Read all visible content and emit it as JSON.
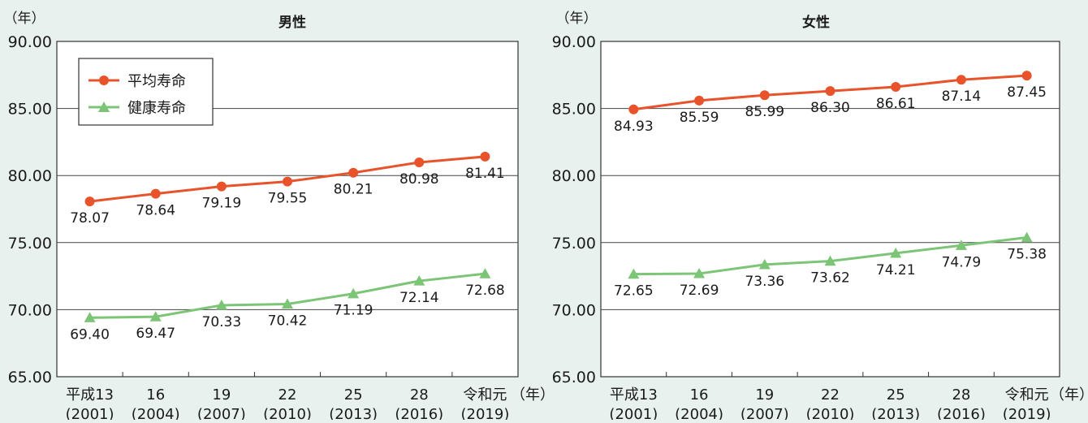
{
  "chart_data": [
    {
      "type": "line",
      "title": "男性",
      "yunit": "（年）",
      "xunit": "（年）",
      "ylim": [
        65,
        90
      ],
      "yticks": [
        "90.00",
        "85.00",
        "80.00",
        "75.00",
        "70.00",
        "65.00"
      ],
      "ytick_values": [
        90,
        85,
        80,
        75,
        70,
        65
      ],
      "grid": true,
      "legend_position": "top-left",
      "categories": [
        {
          "top": "平成13",
          "bottom": "(2001)"
        },
        {
          "top": "16",
          "bottom": "(2004)"
        },
        {
          "top": "19",
          "bottom": "(2007)"
        },
        {
          "top": "22",
          "bottom": "(2010)"
        },
        {
          "top": "25",
          "bottom": "(2013)"
        },
        {
          "top": "28",
          "bottom": "(2016)"
        },
        {
          "top": "令和元",
          "bottom": "(2019)"
        }
      ],
      "series": [
        {
          "name": "平均寿命",
          "marker": "circle",
          "color": "#e8532b",
          "values": [
            78.07,
            78.64,
            79.19,
            79.55,
            80.21,
            80.98,
            81.41
          ],
          "labels": [
            "78.07",
            "78.64",
            "79.19",
            "79.55",
            "80.21",
            "80.98",
            "81.41"
          ]
        },
        {
          "name": "健康寿命",
          "marker": "triangle",
          "color": "#7cc576",
          "values": [
            69.4,
            69.47,
            70.33,
            70.42,
            71.19,
            72.14,
            72.68
          ],
          "labels": [
            "69.40",
            "69.47",
            "70.33",
            "70.42",
            "71.19",
            "72.14",
            "72.68"
          ]
        }
      ]
    },
    {
      "type": "line",
      "title": "女性",
      "yunit": "（年）",
      "xunit": "（年）",
      "ylim": [
        65,
        90
      ],
      "yticks": [
        "90.00",
        "85.00",
        "80.00",
        "75.00",
        "70.00",
        "65.00"
      ],
      "ytick_values": [
        90,
        85,
        80,
        75,
        70,
        65
      ],
      "grid": true,
      "legend_position": "none",
      "categories": [
        {
          "top": "平成13",
          "bottom": "(2001)"
        },
        {
          "top": "16",
          "bottom": "(2004)"
        },
        {
          "top": "19",
          "bottom": "(2007)"
        },
        {
          "top": "22",
          "bottom": "(2010)"
        },
        {
          "top": "25",
          "bottom": "(2013)"
        },
        {
          "top": "28",
          "bottom": "(2016)"
        },
        {
          "top": "令和元",
          "bottom": "(2019)"
        }
      ],
      "series": [
        {
          "name": "平均寿命",
          "marker": "circle",
          "color": "#e8532b",
          "values": [
            84.93,
            85.59,
            85.99,
            86.3,
            86.61,
            87.14,
            87.45
          ],
          "labels": [
            "84.93",
            "85.59",
            "85.99",
            "86.30",
            "86.61",
            "87.14",
            "87.45"
          ]
        },
        {
          "name": "健康寿命",
          "marker": "triangle",
          "color": "#7cc576",
          "values": [
            72.65,
            72.69,
            73.36,
            73.62,
            74.21,
            74.79,
            75.38
          ],
          "labels": [
            "72.65",
            "72.69",
            "73.36",
            "73.62",
            "74.21",
            "74.79",
            "75.38"
          ]
        }
      ]
    }
  ]
}
